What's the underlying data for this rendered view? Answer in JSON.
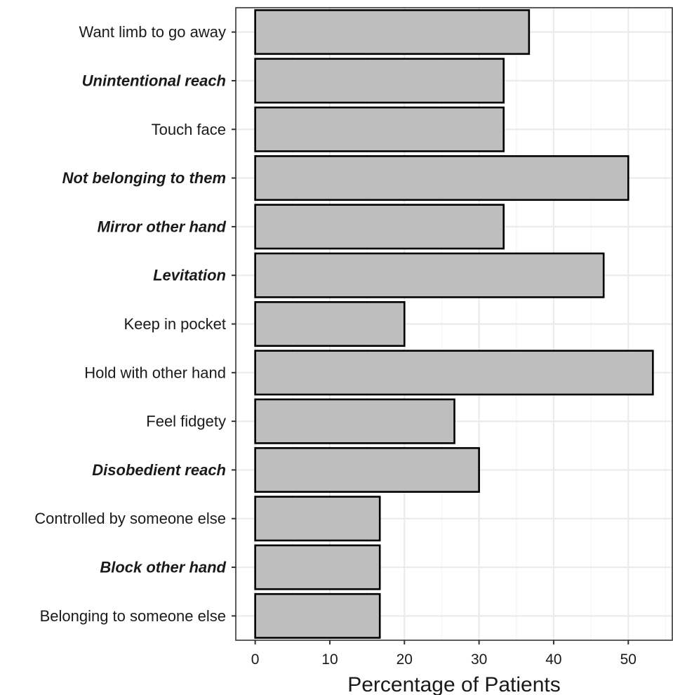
{
  "chart_data": {
    "type": "bar",
    "orientation": "horizontal",
    "categories": [
      "Want limb to go away",
      "Unintentional reach",
      "Touch face",
      "Not belonging to them",
      "Mirror other hand",
      "Levitation",
      "Keep in pocket",
      "Hold with other hand",
      "Feel fidgety",
      "Disobedient reach",
      "Controlled by someone else",
      "Block other hand",
      "Belonging to someone else"
    ],
    "emphasized": [
      false,
      true,
      false,
      true,
      true,
      true,
      false,
      false,
      false,
      true,
      false,
      true,
      false
    ],
    "values": [
      36.7,
      33.3,
      33.3,
      50.0,
      33.3,
      46.7,
      20.0,
      53.3,
      26.7,
      30.0,
      16.7,
      16.7,
      16.7
    ],
    "title": "",
    "xlabel": "Percentage of Patients",
    "ylabel": "",
    "xlim": [
      -2.6,
      55.9
    ],
    "xticks": [
      0,
      10,
      20,
      30,
      40,
      50
    ],
    "grid": true,
    "colors": {
      "bar_fill": "#bebebe",
      "bar_stroke": "#000000",
      "grid_major": "#ebebeb",
      "grid_minor": "#f5f5f5",
      "panel_border": "#333333"
    }
  }
}
